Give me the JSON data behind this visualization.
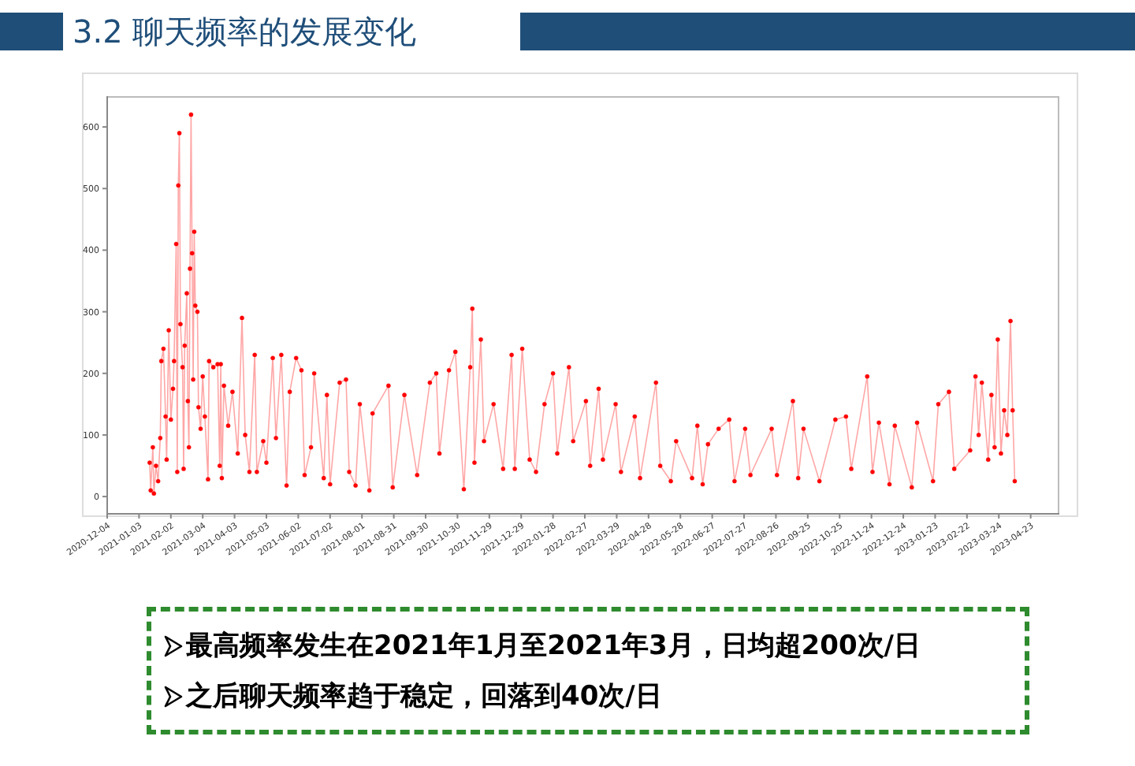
{
  "chart_data": {
    "type": "line",
    "title": "3.2  聊天频率的发展变化",
    "annotations": [
      "最高频率发生在2021年1月至2021年3月，日均超200次/日",
      "之后聊天频率趋于稳定，回落到40次/日"
    ],
    "x": [
      "2021-01-13",
      "2021-01-14",
      "2021-01-16",
      "2021-01-17",
      "2021-01-19",
      "2021-01-21",
      "2021-01-23",
      "2021-01-24",
      "2021-01-26",
      "2021-01-28",
      "2021-01-29",
      "2021-01-31",
      "2021-02-02",
      "2021-02-04",
      "2021-02-05",
      "2021-02-07",
      "2021-02-08",
      "2021-02-09",
      "2021-02-10",
      "2021-02-11",
      "2021-02-13",
      "2021-02-14",
      "2021-02-15",
      "2021-02-17",
      "2021-02-18",
      "2021-02-19",
      "2021-02-20",
      "2021-02-21",
      "2021-02-22",
      "2021-02-23",
      "2021-02-24",
      "2021-02-25",
      "2021-02-27",
      "2021-02-28",
      "2021-03-02",
      "2021-03-04",
      "2021-03-06",
      "2021-03-09",
      "2021-03-10",
      "2021-03-14",
      "2021-03-18",
      "2021-03-20",
      "2021-03-21",
      "2021-03-22",
      "2021-03-24",
      "2021-03-28",
      "2021-04-01",
      "2021-04-06",
      "2021-04-10",
      "2021-04-13",
      "2021-04-17",
      "2021-04-22",
      "2021-04-24",
      "2021-04-30",
      "2021-05-03",
      "2021-05-09",
      "2021-05-12",
      "2021-05-17",
      "2021-05-22",
      "2021-05-25",
      "2021-05-31",
      "2021-06-05",
      "2021-06-08",
      "2021-06-14",
      "2021-06-17",
      "2021-06-26",
      "2021-06-29",
      "2021-07-02",
      "2021-07-11",
      "2021-07-17",
      "2021-07-20",
      "2021-07-26",
      "2021-07-30",
      "2021-08-08",
      "2021-08-11",
      "2021-08-26",
      "2021-08-30",
      "2021-09-10",
      "2021-09-22",
      "2021-10-04",
      "2021-10-10",
      "2021-10-13",
      "2021-10-22",
      "2021-10-28",
      "2021-11-05",
      "2021-11-11",
      "2021-11-13",
      "2021-11-15",
      "2021-11-21",
      "2021-11-24",
      "2021-12-03",
      "2021-12-12",
      "2021-12-20",
      "2021-12-23",
      "2021-12-30",
      "2022-01-06",
      "2022-01-12",
      "2022-01-20",
      "2022-01-28",
      "2022-02-01",
      "2022-02-12",
      "2022-02-16",
      "2022-02-28",
      "2022-03-04",
      "2022-03-12",
      "2022-03-16",
      "2022-03-28",
      "2022-04-02",
      "2022-04-15",
      "2022-04-20",
      "2022-05-05",
      "2022-05-09",
      "2022-05-19",
      "2022-05-24",
      "2022-06-08",
      "2022-06-13",
      "2022-06-18",
      "2022-06-23",
      "2022-07-03",
      "2022-07-13",
      "2022-07-18",
      "2022-07-28",
      "2022-08-02",
      "2022-08-22",
      "2022-08-27",
      "2022-09-11",
      "2022-09-16",
      "2022-09-21",
      "2022-10-06",
      "2022-10-21",
      "2022-10-31",
      "2022-11-05",
      "2022-11-20",
      "2022-11-25",
      "2022-12-01",
      "2022-12-11",
      "2022-12-16",
      "2023-01-01",
      "2023-01-06",
      "2023-01-21",
      "2023-01-26",
      "2023-02-05",
      "2023-02-10",
      "2023-02-25",
      "2023-03-02",
      "2023-03-05",
      "2023-03-08",
      "2023-03-14",
      "2023-03-17",
      "2023-03-20",
      "2023-03-23",
      "2023-03-26",
      "2023-03-29",
      "2023-04-01",
      "2023-04-04",
      "2023-04-06",
      "2023-04-08"
    ],
    "values": [
      55,
      10,
      80,
      5,
      50,
      25,
      95,
      220,
      240,
      130,
      60,
      270,
      125,
      175,
      220,
      410,
      40,
      505,
      590,
      280,
      210,
      45,
      245,
      330,
      155,
      80,
      370,
      620,
      395,
      190,
      430,
      310,
      300,
      145,
      110,
      195,
      130,
      28,
      220,
      210,
      215,
      50,
      215,
      30,
      180,
      115,
      170,
      70,
      290,
      100,
      40,
      230,
      40,
      90,
      55,
      225,
      95,
      230,
      18,
      170,
      225,
      205,
      35,
      80,
      200,
      30,
      165,
      20,
      185,
      190,
      40,
      18,
      150,
      10,
      135,
      180,
      15,
      165,
      35,
      185,
      200,
      70,
      205,
      235,
      12,
      210,
      305,
      55,
      255,
      90,
      150,
      45,
      230,
      45,
      240,
      60,
      40,
      150,
      200,
      70,
      210,
      90,
      155,
      50,
      175,
      60,
      150,
      40,
      130,
      30,
      185,
      50,
      25,
      90,
      30,
      115,
      20,
      85,
      110,
      125,
      25,
      110,
      35,
      110,
      35,
      155,
      30,
      110,
      25,
      125,
      130,
      45,
      195,
      40,
      120,
      20,
      115,
      15,
      120,
      25,
      150,
      170,
      45,
      75,
      195,
      100,
      185,
      60,
      165,
      80,
      255,
      70,
      140,
      100,
      285,
      140,
      25
    ],
    "color": "#ff0000",
    "marker": "circle",
    "xlim": [
      "2020-12-04",
      "2023-05-20"
    ],
    "xticks": [
      "2020-12-04",
      "2021-01-03",
      "2021-02-02",
      "2021-03-04",
      "2021-04-03",
      "2021-05-03",
      "2021-06-02",
      "2021-07-02",
      "2021-08-01",
      "2021-08-31",
      "2021-09-30",
      "2021-10-30",
      "2021-11-29",
      "2021-12-29",
      "2022-01-28",
      "2022-02-27",
      "2022-03-29",
      "2022-04-28",
      "2022-05-28",
      "2022-06-27",
      "2022-07-27",
      "2022-08-26",
      "2022-09-25",
      "2022-10-25",
      "2022-11-24",
      "2022-12-24",
      "2023-01-23",
      "2023-02-22",
      "2023-03-24",
      "2023-04-23"
    ],
    "ylim": [
      -28,
      650
    ],
    "yticks": [
      0,
      100,
      200,
      300,
      400,
      500,
      600
    ]
  }
}
